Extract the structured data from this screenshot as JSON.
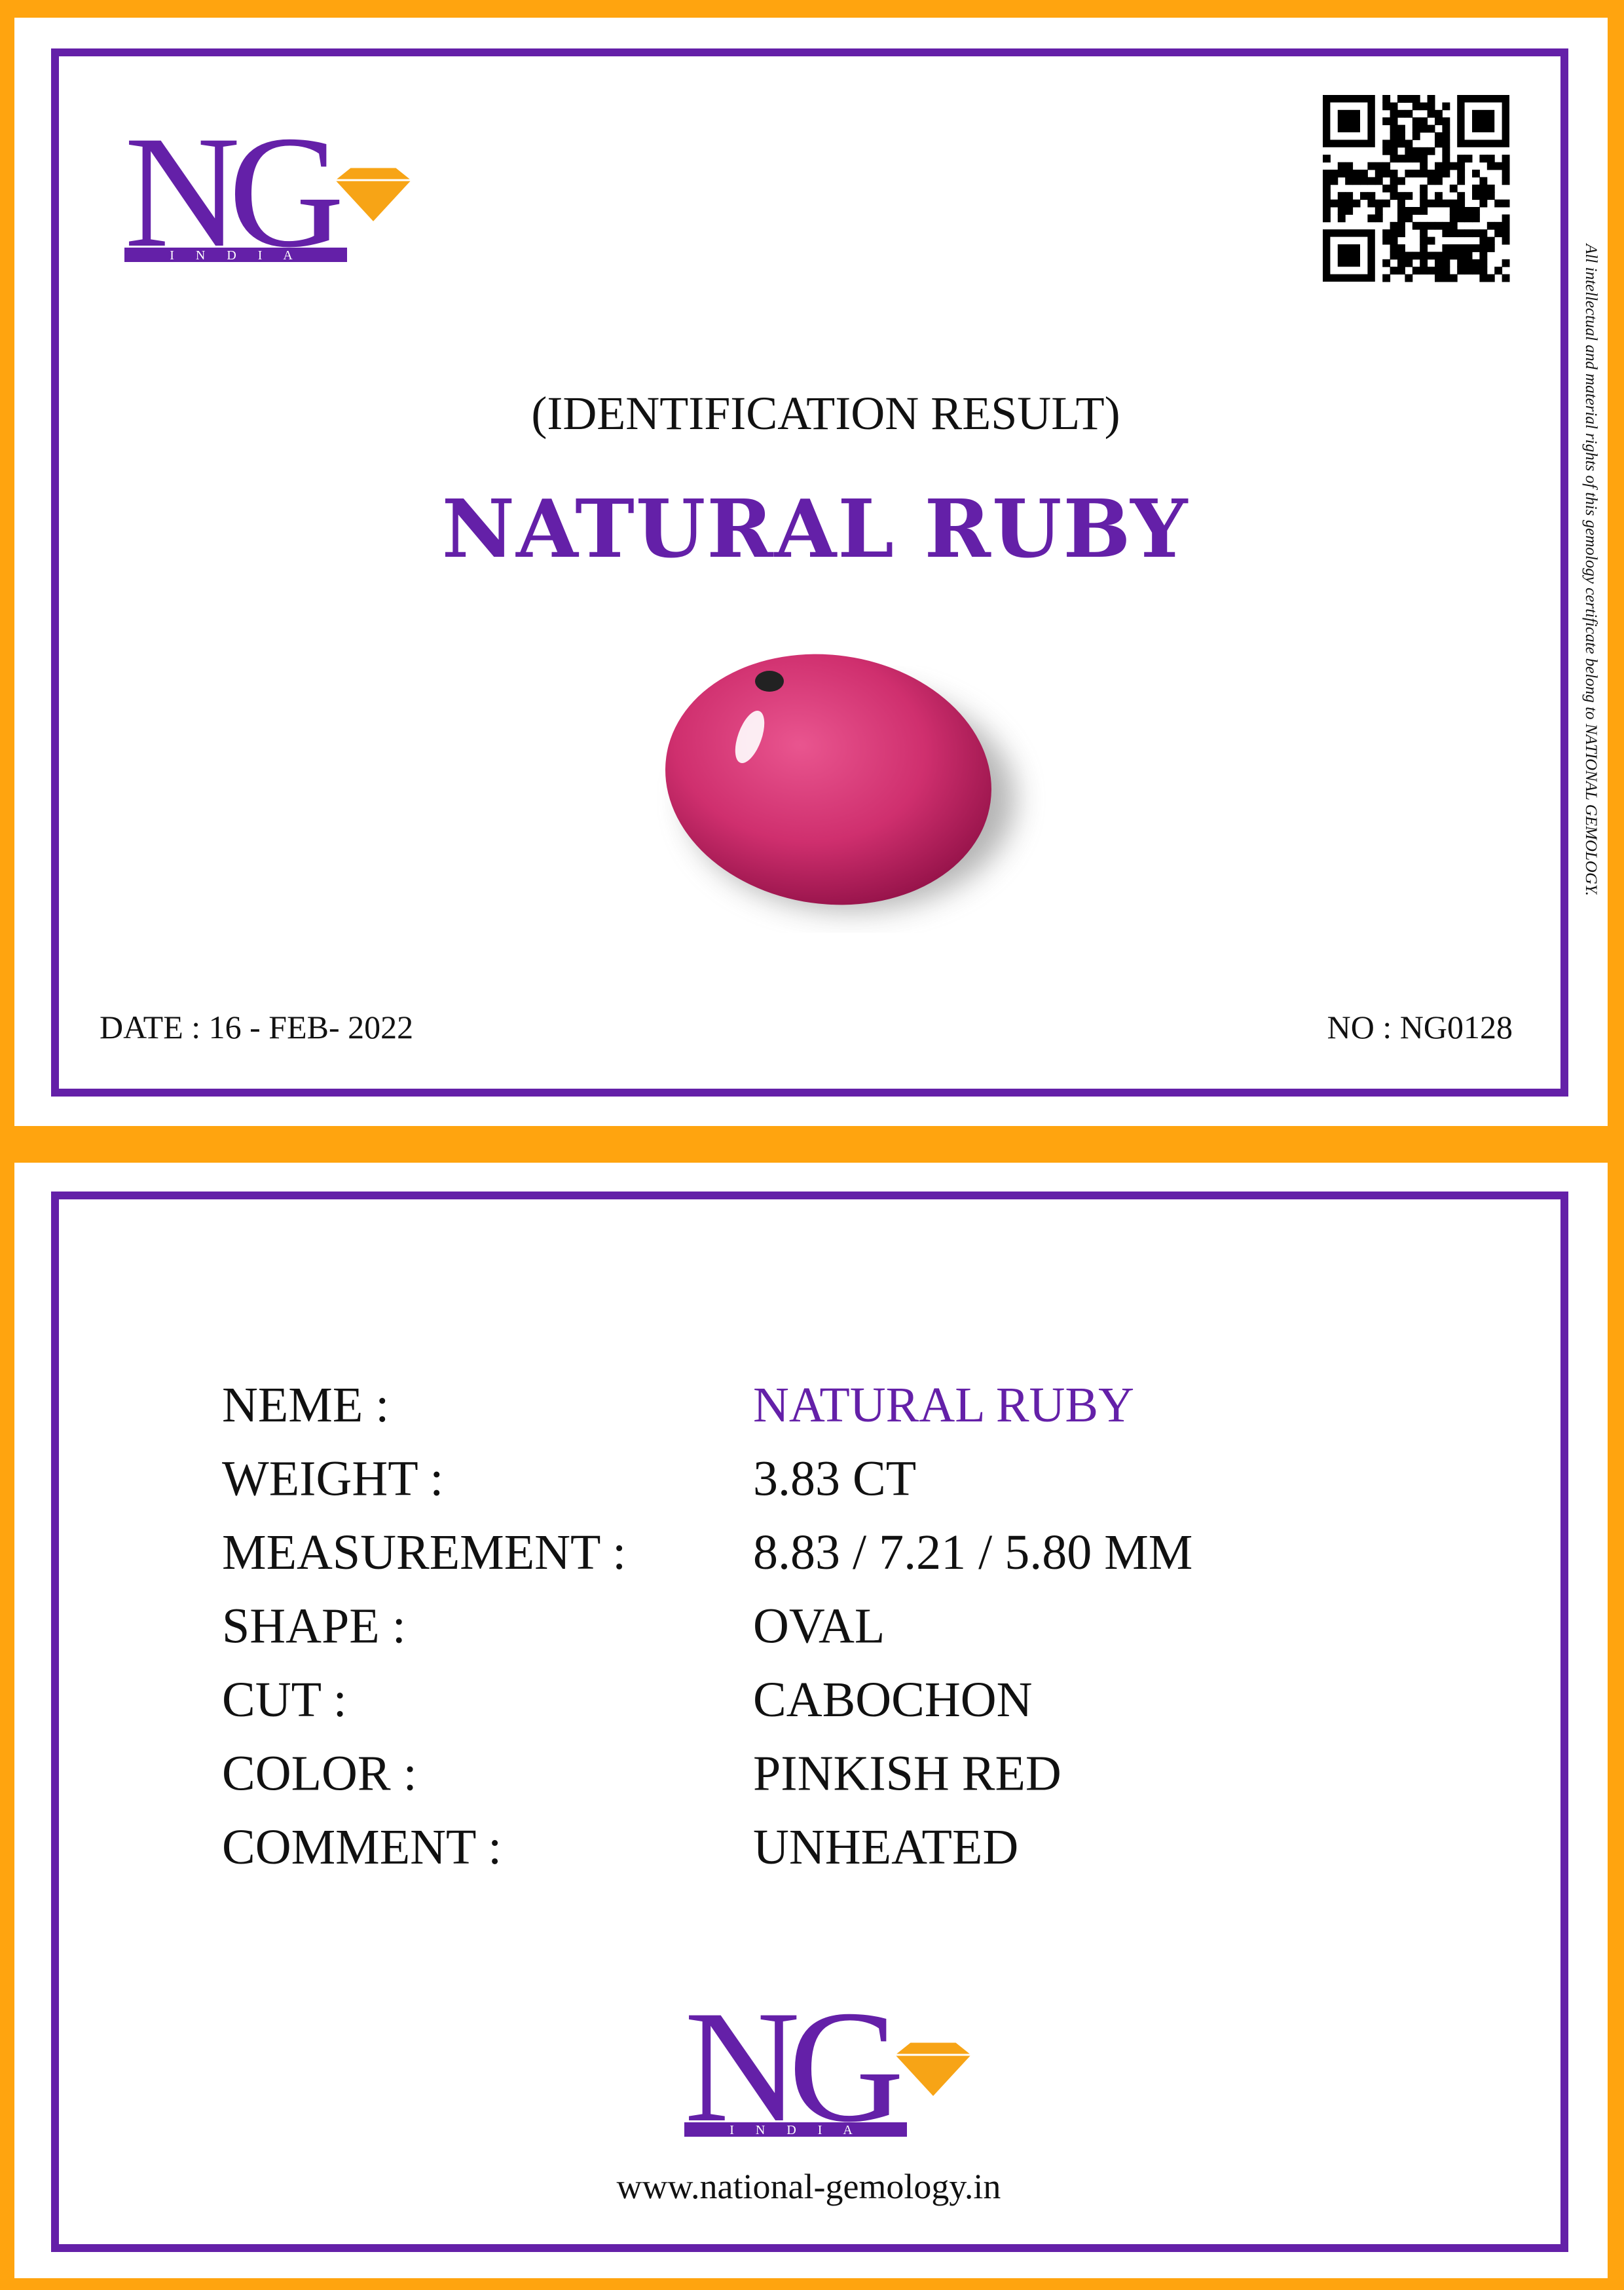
{
  "header": {
    "logo": {
      "mark": "NG",
      "tagline": "I N D I A"
    },
    "subtitle": "(IDENTIFICATION RESULT)",
    "title": "NATURAL RUBY",
    "date": "DATE : 16 - FEB- 2022",
    "number": "NO : NG0128",
    "side_note": "All intellectual and material rights of this gemology certificate belong to NATIONAL GEMOLOGY."
  },
  "details": {
    "rows": [
      [
        "NEME :",
        "NATURAL RUBY"
      ],
      [
        "WEIGHT :",
        "3.83 CT"
      ],
      [
        "MEASUREMENT :",
        "8.83 / 7.21 / 5.80 MM"
      ],
      [
        "SHAPE :",
        "OVAL"
      ],
      [
        "CUT :",
        "CABOCHON"
      ],
      [
        "COLOR :",
        "PINKISH RED"
      ],
      [
        "COMMENT :",
        "UNHEATED"
      ]
    ]
  },
  "footer": {
    "logo": {
      "mark": "NG",
      "tagline": "I N D I A"
    },
    "website": "www.national-gemology.in"
  }
}
